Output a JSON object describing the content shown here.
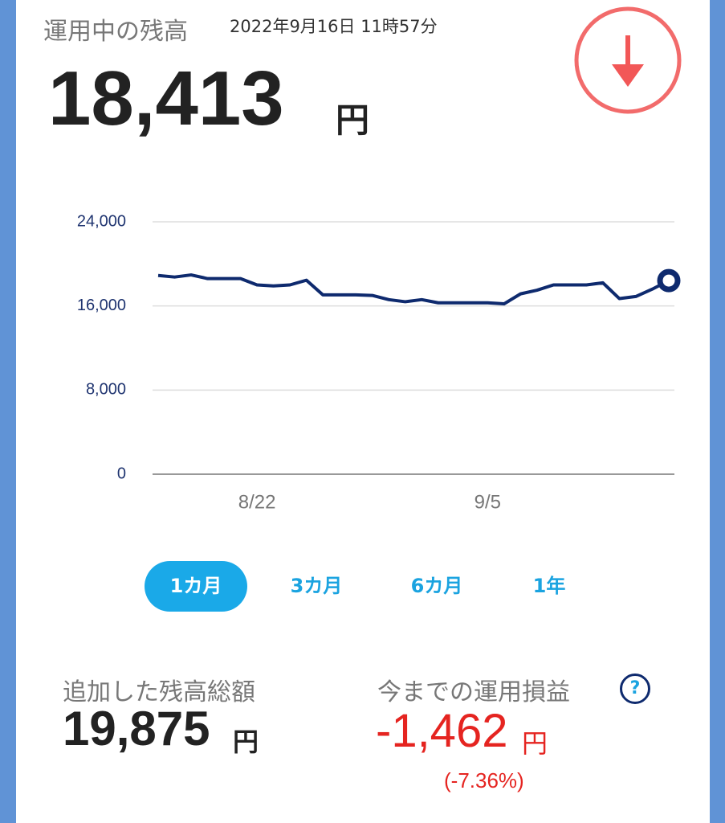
{
  "header": {
    "title": "運用中の残高",
    "timestamp": "2022年9月16日 11時57分",
    "balance": "18,413",
    "unit": "円"
  },
  "chart_data": {
    "type": "line",
    "categories": [
      null,
      null,
      null,
      null,
      null,
      null,
      "8/22",
      null,
      null,
      null,
      null,
      null,
      null,
      null,
      null,
      null,
      null,
      null,
      null,
      null,
      "9/5",
      null,
      null,
      null,
      null,
      null,
      null,
      null,
      null,
      null,
      null,
      null
    ],
    "series": [
      {
        "color": "#0e2a6e",
        "values": [
          18900,
          18750,
          18950,
          18600,
          18600,
          18600,
          18000,
          17900,
          18000,
          18450,
          17050,
          17050,
          17050,
          17000,
          16600,
          16400,
          16600,
          16300,
          16300,
          16300,
          16300,
          16200,
          17150,
          17500,
          18000,
          18000,
          18000,
          18200,
          16700,
          16900,
          17600,
          18413
        ]
      }
    ],
    "ylim": [
      0,
      24000
    ],
    "yticks": [
      0,
      {
        "value": 8000,
        "label": "8,000"
      },
      {
        "value": 16000,
        "label": "16,000"
      },
      {
        "value": 24000,
        "label": "24,000"
      }
    ],
    "grid": true
  },
  "periods": {
    "options": [
      "1カ月",
      "3カ月",
      "6カ月",
      "1年"
    ],
    "selected": "1カ月"
  },
  "summary": {
    "added": {
      "label": "追加した残高総額",
      "amount": "19,875",
      "unit": "円"
    },
    "profit": {
      "label": "今までの運用損益",
      "help": "?",
      "amount": "-1,462",
      "unit": "円",
      "percent": "(-7.36%)"
    }
  }
}
